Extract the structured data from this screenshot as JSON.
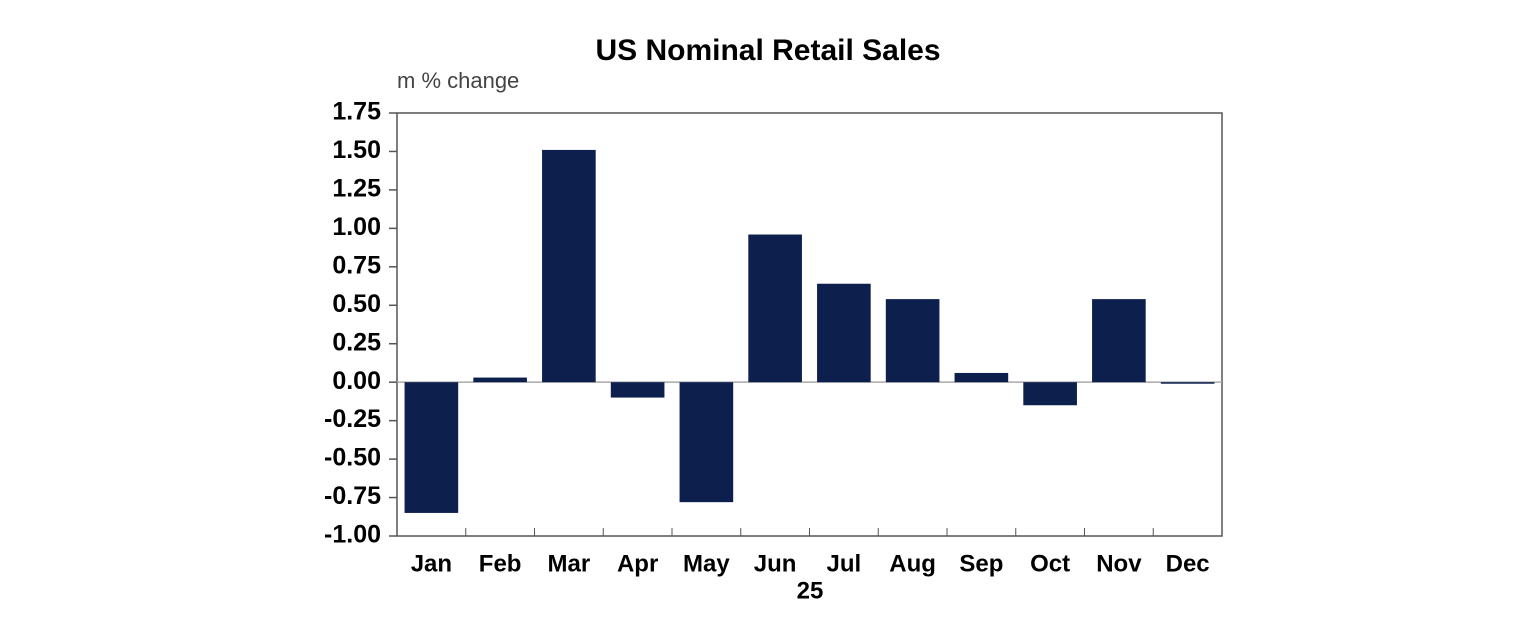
{
  "chart_data": {
    "type": "bar",
    "title": "US Nominal Retail Sales",
    "ylabel": "m % change",
    "xlabel": "25",
    "categories": [
      "Jan",
      "Feb",
      "Mar",
      "Apr",
      "May",
      "Jun",
      "Jul",
      "Aug",
      "Sep",
      "Oct",
      "Nov",
      "Dec"
    ],
    "values": [
      -0.85,
      0.03,
      1.51,
      -0.1,
      -0.78,
      0.96,
      0.64,
      0.54,
      0.06,
      -0.15,
      0.54,
      -0.01
    ],
    "color": "#0c1f4d",
    "ylim": [
      -1.0,
      1.75
    ],
    "yticks": [
      1.75,
      {
        "value": 1.5,
        "label": "1.50"
      },
      1.25,
      {
        "value": 1.0,
        "label": "1.00"
      },
      0.75,
      {
        "value": 0.5,
        "label": "0.50"
      },
      0.25,
      {
        "value": 0,
        "label": "0.00"
      },
      -0.25,
      {
        "value": -0.5,
        "label": "-0.50"
      },
      -0.75,
      {
        "value": -1.0,
        "label": "-1.00"
      }
    ]
  }
}
